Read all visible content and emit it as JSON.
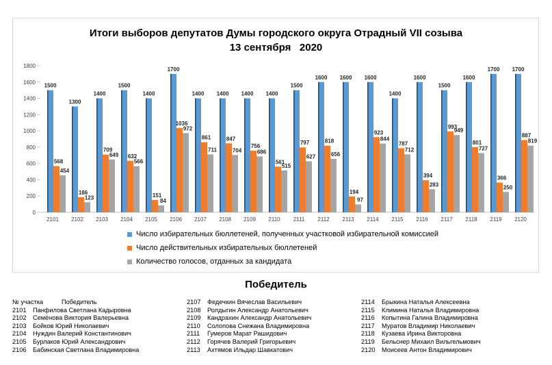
{
  "title_line1": "Итоги выборов депутатов Думы городского округа Отрадный VII созыва",
  "title_line2": "13 сентября   2020",
  "chart_data": {
    "type": "bar",
    "categories": [
      "2101",
      "2102",
      "2103",
      "2104",
      "2105",
      "2106",
      "2107",
      "2108",
      "2109",
      "2110",
      "2111",
      "2112",
      "2113",
      "2114",
      "2115",
      "2116",
      "2117",
      "2118",
      "2119",
      "2120"
    ],
    "series": [
      {
        "name": "Число избирательных бюллетеней, полученных участковой избирательной комиссией",
        "color": "#5b9bd5",
        "values": [
          1500,
          1300,
          1400,
          1500,
          1400,
          1700,
          1400,
          1400,
          1400,
          1400,
          1500,
          1600,
          1600,
          1600,
          1400,
          1600,
          1500,
          1600,
          1700,
          1700
        ]
      },
      {
        "name": "Число действительных избирательных бюллетеней",
        "color": "#ed7d31",
        "values": [
          568,
          186,
          709,
          632,
          151,
          1036,
          861,
          847,
          756,
          561,
          797,
          818,
          194,
          923,
          787,
          394,
          993,
          801,
          366,
          887
        ]
      },
      {
        "name": "Количество голосов, отданных за кандидата",
        "color": "#a5a5a5",
        "values": [
          454,
          123,
          649,
          566,
          84,
          972,
          711,
          704,
          686,
          515,
          627,
          656,
          97,
          844,
          712,
          283,
          949,
          727,
          250,
          819
        ]
      }
    ],
    "ylim": [
      0,
      1800
    ],
    "yticks": [
      0,
      200,
      400,
      600,
      800,
      1000,
      1200,
      1400,
      1600,
      1800
    ],
    "grid": false,
    "legend_position": "bottom"
  },
  "winners": {
    "title": "Победитель",
    "header_num": "№ участка",
    "header_name": "Победитель",
    "columns": [
      [
        {
          "num": "2101",
          "name": "Панфилова Светлана Кадыровна"
        },
        {
          "num": "2102",
          "name": "Семёнова Виктория Валерьевна"
        },
        {
          "num": "2103",
          "name": "Бойков Юрий Николаевич"
        },
        {
          "num": "2104",
          "name": "Нуждин Валерий Константинович"
        },
        {
          "num": "2105",
          "name": "Бурлаков Юрий Александрович"
        },
        {
          "num": "2106",
          "name": "Бабинская Светлана Владимировна"
        }
      ],
      [
        {
          "num": "2107",
          "name": "Федечкин Вячеслав Васильевич"
        },
        {
          "num": "2108",
          "name": "Ролдыгин Александр Анатольевич"
        },
        {
          "num": "2109",
          "name": "Кандрахин Александр Анатольевич"
        },
        {
          "num": "2110",
          "name": "Солопова Снежана Владимировна"
        },
        {
          "num": "2111",
          "name": "Гумеров Марат Рашидович"
        },
        {
          "num": "2112",
          "name": "Горячев Валерий Григорьевич"
        },
        {
          "num": "2113",
          "name": "Ахтямов Ильдар Шавкатович"
        }
      ],
      [
        {
          "num": "2114",
          "name": "Брыкина Наталья Алексеевна"
        },
        {
          "num": "2115",
          "name": "Климина Наталья Владимировна"
        },
        {
          "num": "2116",
          "name": "Копытина Галина Владимировна"
        },
        {
          "num": "2117",
          "name": "Муратов Владимир Николаевич"
        },
        {
          "num": "2118",
          "name": "Кузаева Ирина Викторовна"
        },
        {
          "num": "2119",
          "name": "Бельснер Михаил Вильгельмович"
        },
        {
          "num": "2120",
          "name": "Моисеев Антон Владимирович"
        }
      ]
    ]
  }
}
